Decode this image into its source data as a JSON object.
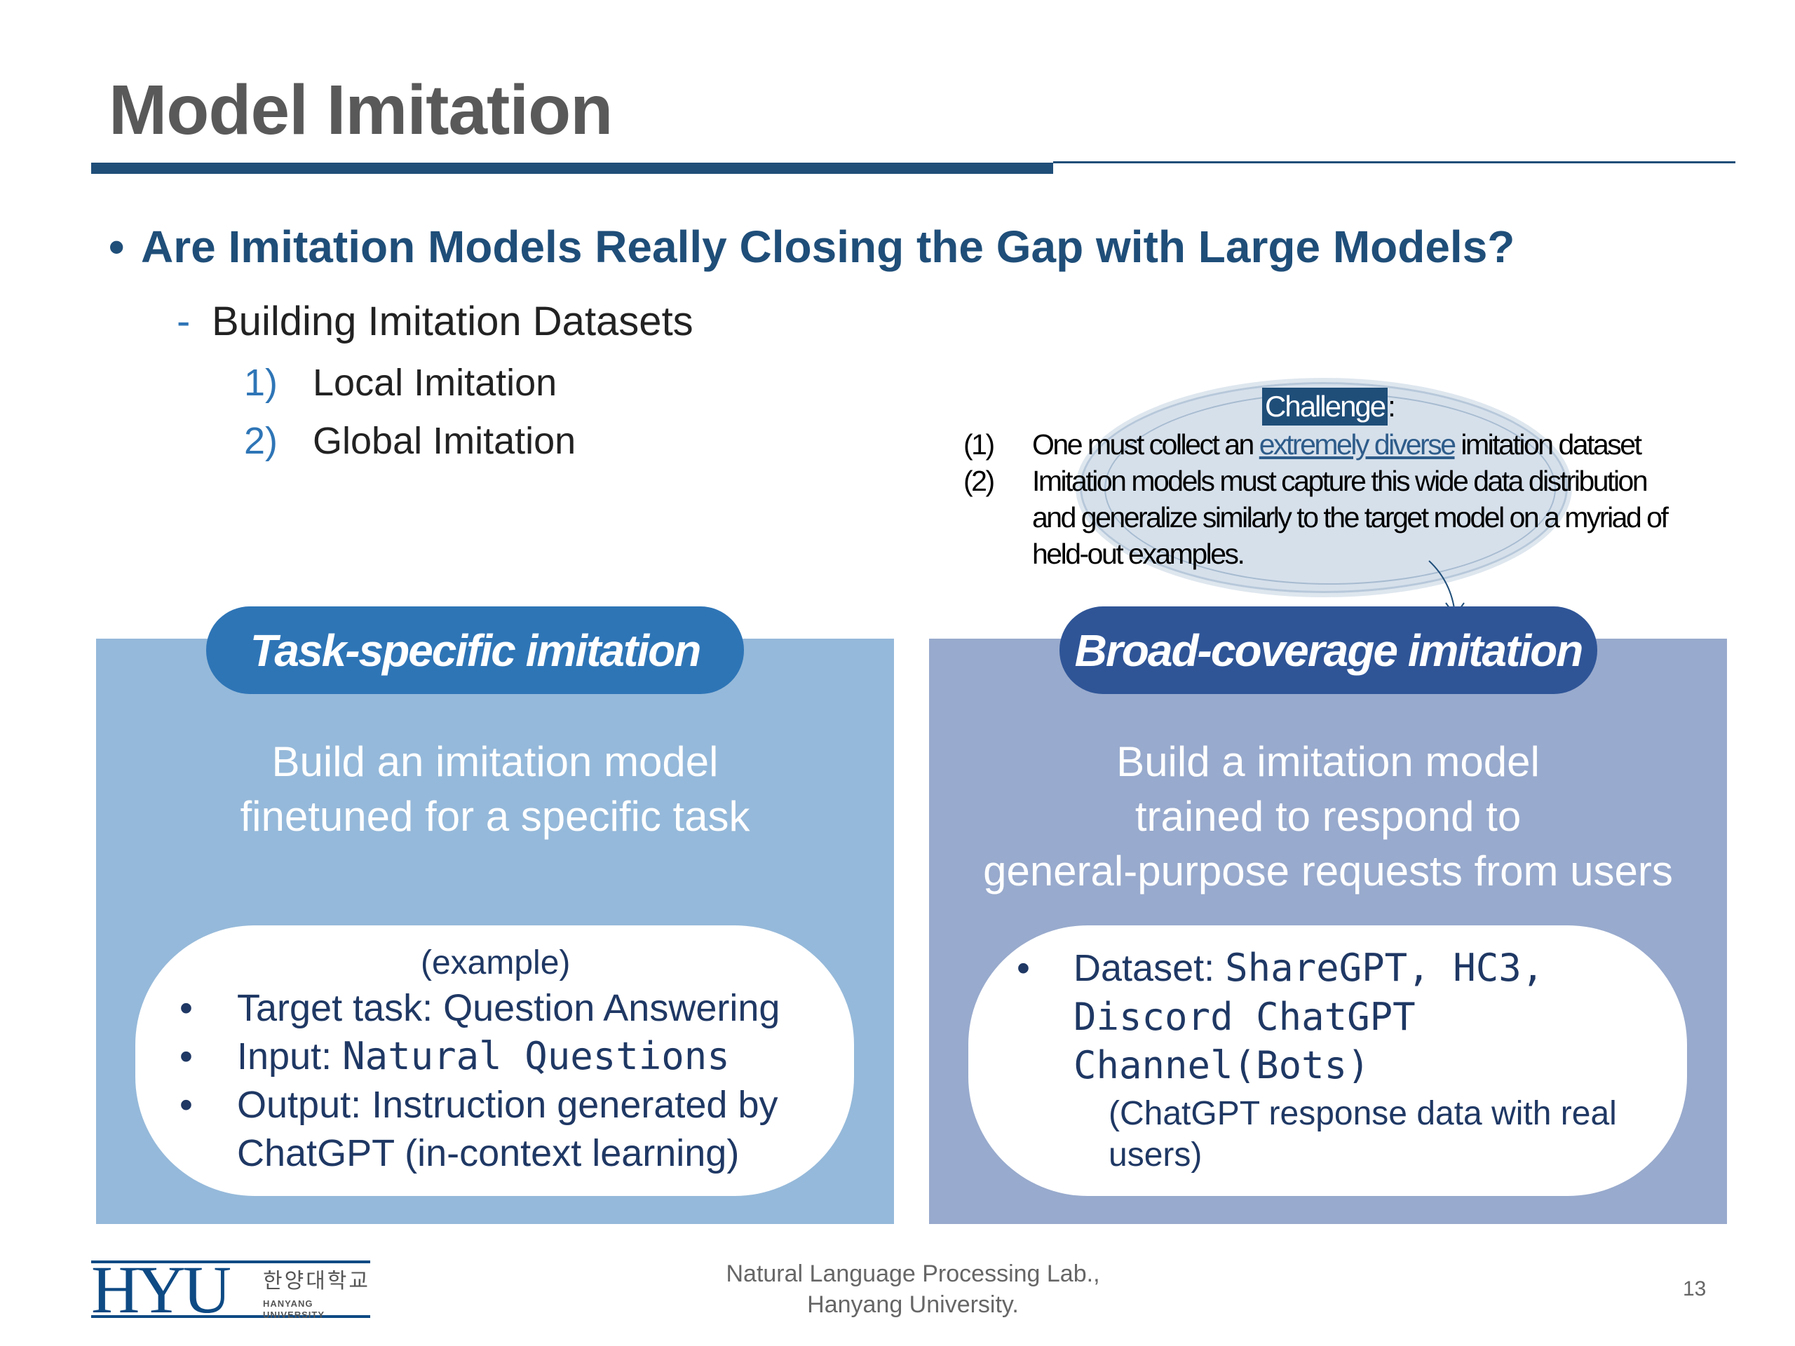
{
  "title": "Model Imitation",
  "heading": "Are Imitation Models Really Closing the Gap with Large Models?",
  "subheading": "Building Imitation Datasets",
  "numbered": [
    {
      "num": "1)",
      "text": "Local Imitation"
    },
    {
      "num": "2)",
      "text": "Global Imitation"
    }
  ],
  "challenge": {
    "label": "Challenge",
    "colon": ":",
    "item1_num": "(1)",
    "item1_pre": "One must collect an ",
    "item1_link": "extremely diverse",
    "item1_post": " imitation dataset",
    "item2_num": "(2)",
    "item2_line1": "Imitation models must capture this wide data distribution",
    "item2_line2": "and generalize similarly to the target model on a myriad of",
    "item2_line3": "held-out examples."
  },
  "left": {
    "pill": "Task-specific imitation",
    "desc1": "Build an imitation model",
    "desc2": "finetuned for a specific task",
    "example": "(example)",
    "b1": "Target task: Question Answering",
    "b2_label": "Input: ",
    "b2_value": "Natural Questions",
    "b3_line1": "Output: Instruction generated by",
    "b3_line2": "ChatGPT (in-context learning)"
  },
  "right": {
    "pill": "Broad-coverage imitation",
    "desc1": "Build a imitation model",
    "desc2": "trained to respond to",
    "desc3": "general-purpose requests from users",
    "b1_label": "Dataset: ",
    "b1_line1": "ShareGPT, HC3,",
    "b1_line2": "Discord ChatGPT",
    "b1_line3": "Channel(Bots)",
    "note1": "(ChatGPT response data with real",
    "note2": "users)"
  },
  "footer": {
    "line1": "Natural Language Processing Lab.,",
    "line2": "Hanyang University.",
    "page": "13"
  },
  "logo": {
    "letters": "HYU",
    "korean": "한양대학교",
    "english": "HANYANG UNIVERSITY"
  },
  "colors": {
    "accent": "#1f4e79",
    "left_panel": "#95b9da",
    "left_pill": "#2e75b6",
    "right_panel": "#98aacd",
    "right_pill": "#2f5597"
  }
}
